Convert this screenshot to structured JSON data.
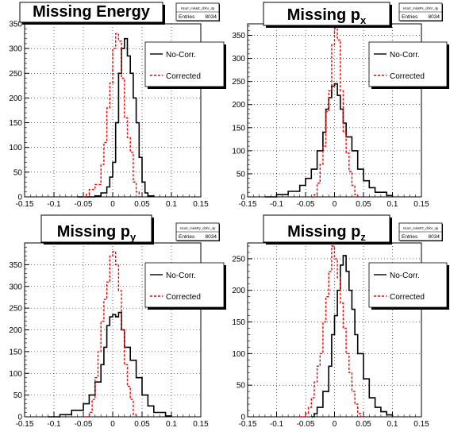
{
  "figure": {
    "panels": [
      {
        "id": "E",
        "title_main": "Missing Energy",
        "title_sub": "",
        "stats_name": "Hcorr_missE_chkV_4p",
        "stats_entries_label": "Entries",
        "stats_entries_value": "8034",
        "legend": {
          "placement": "right",
          "entries": [
            "No-Corr.",
            "Corrected"
          ]
        }
      },
      {
        "id": "px",
        "title_main": "Missing p",
        "title_sub": "x",
        "stats_name": "Hcorr_missPx_chkV_4p",
        "stats_entries_label": "Entries",
        "stats_entries_value": "8034",
        "legend": {
          "placement": "right",
          "entries": [
            "No-Corr.",
            "Corrected"
          ]
        }
      },
      {
        "id": "py",
        "title_main": "Missing p",
        "title_sub": "y",
        "stats_name": "Hcorr_missPy_chkV_4p",
        "stats_entries_label": "Entries",
        "stats_entries_value": "8034",
        "legend": {
          "placement": "right",
          "entries": [
            "No-Corr.",
            "Corrected"
          ]
        }
      },
      {
        "id": "pz",
        "title_main": "Missing p",
        "title_sub": "z",
        "stats_name": "Hcorr_missPz_chkV_4p",
        "stats_entries_label": "Entries",
        "stats_entries_value": "8034",
        "legend": {
          "placement": "right",
          "entries": [
            "No-Corr.",
            "Corrected"
          ]
        }
      }
    ],
    "colors": {
      "nocorr": "#000000",
      "corrected": "#ff0000",
      "grid": "#000000",
      "frame": "#000000",
      "legend_shadow": "#000000"
    }
  },
  "chart_data": [
    {
      "type": "histogram",
      "title": "Missing Energy",
      "xlim": [
        -0.15,
        0.15
      ],
      "ylim": [
        0,
        350
      ],
      "xticks": [
        -0.15,
        -0.1,
        -0.05,
        0,
        0.05,
        0.1,
        0.15
      ],
      "xticklabels": [
        "-0.15",
        "-0.1",
        "-0.05",
        "0",
        "0.05",
        "0.1",
        "0.15"
      ],
      "yticks": [
        0,
        50,
        100,
        150,
        200,
        250,
        300,
        350
      ],
      "grid": true,
      "series": [
        {
          "name": "No-Corr.",
          "style": "solid",
          "color": "#000000",
          "points": [
            [
              -0.06,
              0
            ],
            [
              -0.03,
              2
            ],
            [
              -0.02,
              8
            ],
            [
              -0.01,
              20
            ],
            [
              -0.005,
              40
            ],
            [
              0,
              70
            ],
            [
              0.005,
              150
            ],
            [
              0.01,
              250
            ],
            [
              0.015,
              300
            ],
            [
              0.02,
              320
            ],
            [
              0.025,
              285
            ],
            [
              0.03,
              250
            ],
            [
              0.035,
              200
            ],
            [
              0.04,
              150
            ],
            [
              0.045,
              80
            ],
            [
              0.05,
              30
            ],
            [
              0.055,
              8
            ],
            [
              0.06,
              2
            ],
            [
              0.07,
              0
            ]
          ]
        },
        {
          "name": "Corrected",
          "style": "dashed",
          "color": "#ff0000",
          "points": [
            [
              -0.05,
              0
            ],
            [
              -0.045,
              5
            ],
            [
              -0.04,
              15
            ],
            [
              -0.03,
              25
            ],
            [
              -0.02,
              65
            ],
            [
              -0.015,
              110
            ],
            [
              -0.01,
              180
            ],
            [
              -0.005,
              230
            ],
            [
              0,
              300
            ],
            [
              0.005,
              330
            ],
            [
              0.01,
              315
            ],
            [
              0.015,
              240
            ],
            [
              0.02,
              160
            ],
            [
              0.025,
              120
            ],
            [
              0.03,
              90
            ],
            [
              0.035,
              30
            ],
            [
              0.04,
              10
            ],
            [
              0.045,
              0
            ]
          ]
        }
      ]
    },
    {
      "type": "histogram",
      "title": "Missing p_x",
      "xlim": [
        -0.15,
        0.15
      ],
      "ylim": [
        0,
        375
      ],
      "xticks": [
        -0.15,
        -0.1,
        -0.05,
        0,
        0.05,
        0.1,
        0.15
      ],
      "xticklabels": [
        "-0.15",
        "-0.1",
        "-0.05",
        "0",
        "0.05",
        "0.1",
        "0.15"
      ],
      "yticks": [
        0,
        50,
        100,
        150,
        200,
        250,
        300,
        350
      ],
      "grid": true,
      "series": [
        {
          "name": "No-Corr.",
          "style": "solid",
          "color": "#000000",
          "points": [
            [
              -0.12,
              0
            ],
            [
              -0.1,
              5
            ],
            [
              -0.08,
              12
            ],
            [
              -0.06,
              25
            ],
            [
              -0.05,
              40
            ],
            [
              -0.04,
              60
            ],
            [
              -0.03,
              100
            ],
            [
              -0.02,
              140
            ],
            [
              -0.015,
              190
            ],
            [
              -0.01,
              215
            ],
            [
              -0.005,
              240
            ],
            [
              0,
              245
            ],
            [
              0.005,
              220
            ],
            [
              0.01,
              190
            ],
            [
              0.015,
              160
            ],
            [
              0.02,
              130
            ],
            [
              0.03,
              100
            ],
            [
              0.04,
              60
            ],
            [
              0.05,
              35
            ],
            [
              0.06,
              20
            ],
            [
              0.07,
              10
            ],
            [
              0.09,
              3
            ],
            [
              0.1,
              0
            ]
          ]
        },
        {
          "name": "Corrected",
          "style": "dashed",
          "color": "#ff0000",
          "points": [
            [
              -0.04,
              0
            ],
            [
              -0.035,
              5
            ],
            [
              -0.03,
              30
            ],
            [
              -0.025,
              70
            ],
            [
              -0.02,
              110
            ],
            [
              -0.015,
              185
            ],
            [
              -0.01,
              230
            ],
            [
              -0.005,
              330
            ],
            [
              0,
              365
            ],
            [
              0.005,
              340
            ],
            [
              0.01,
              230
            ],
            [
              0.015,
              140
            ],
            [
              0.02,
              95
            ],
            [
              0.025,
              55
            ],
            [
              0.03,
              25
            ],
            [
              0.035,
              5
            ],
            [
              0.04,
              0
            ]
          ]
        }
      ]
    },
    {
      "type": "histogram",
      "title": "Missing p_y",
      "xlim": [
        -0.15,
        0.15
      ],
      "ylim": [
        0,
        400
      ],
      "xticks": [
        -0.15,
        -0.1,
        -0.05,
        0,
        0.05,
        0.1,
        0.15
      ],
      "xticklabels": [
        "-0.15",
        "-0.1",
        "-0.05",
        "0",
        "0.05",
        "0.1",
        "0.15"
      ],
      "yticks": [
        0,
        50,
        100,
        150,
        200,
        250,
        300,
        350
      ],
      "grid": true,
      "series": [
        {
          "name": "No-Corr.",
          "style": "solid",
          "color": "#000000",
          "points": [
            [
              -0.11,
              0
            ],
            [
              -0.09,
              5
            ],
            [
              -0.07,
              15
            ],
            [
              -0.05,
              30
            ],
            [
              -0.04,
              50
            ],
            [
              -0.03,
              80
            ],
            [
              -0.02,
              120
            ],
            [
              -0.015,
              160
            ],
            [
              -0.01,
              210
            ],
            [
              -0.005,
              230
            ],
            [
              0,
              235
            ],
            [
              0.005,
              230
            ],
            [
              0.01,
              240
            ],
            [
              0.015,
              200
            ],
            [
              0.02,
              160
            ],
            [
              0.03,
              130
            ],
            [
              0.04,
              90
            ],
            [
              0.05,
              50
            ],
            [
              0.06,
              25
            ],
            [
              0.07,
              10
            ],
            [
              0.09,
              2
            ],
            [
              0.1,
              0
            ]
          ]
        },
        {
          "name": "Corrected",
          "style": "dashed",
          "color": "#ff0000",
          "points": [
            [
              -0.045,
              0
            ],
            [
              -0.04,
              10
            ],
            [
              -0.035,
              40
            ],
            [
              -0.03,
              90
            ],
            [
              -0.025,
              150
            ],
            [
              -0.02,
              220
            ],
            [
              -0.015,
              270
            ],
            [
              -0.01,
              310
            ],
            [
              -0.005,
              370
            ],
            [
              0,
              380
            ],
            [
              0.005,
              350
            ],
            [
              0.01,
              290
            ],
            [
              0.015,
              200
            ],
            [
              0.02,
              120
            ],
            [
              0.025,
              70
            ],
            [
              0.03,
              40
            ],
            [
              0.035,
              5
            ],
            [
              0.04,
              0
            ]
          ]
        }
      ]
    },
    {
      "type": "histogram",
      "title": "Missing p_z",
      "xlim": [
        -0.15,
        0.15
      ],
      "ylim": [
        0,
        275
      ],
      "xticks": [
        -0.15,
        -0.1,
        -0.05,
        0,
        0.05,
        0.1,
        0.15
      ],
      "xticklabels": [
        "-0.15",
        "-0.1",
        "-0.05",
        "0",
        "0.05",
        "0.1",
        "0.15"
      ],
      "yticks": [
        0,
        50,
        100,
        150,
        200,
        250
      ],
      "grid": true,
      "series": [
        {
          "name": "No-Corr.",
          "style": "solid",
          "color": "#000000",
          "points": [
            [
              -0.04,
              0
            ],
            [
              -0.035,
              5
            ],
            [
              -0.03,
              15
            ],
            [
              -0.02,
              40
            ],
            [
              -0.01,
              80
            ],
            [
              -0.005,
              130
            ],
            [
              0,
              160
            ],
            [
              0.005,
              200
            ],
            [
              0.01,
              240
            ],
            [
              0.015,
              255
            ],
            [
              0.02,
              230
            ],
            [
              0.025,
              200
            ],
            [
              0.03,
              170
            ],
            [
              0.035,
              130
            ],
            [
              0.04,
              100
            ],
            [
              0.05,
              60
            ],
            [
              0.06,
              30
            ],
            [
              0.07,
              15
            ],
            [
              0.08,
              8
            ],
            [
              0.09,
              3
            ],
            [
              0.1,
              0
            ]
          ]
        },
        {
          "name": "Corrected",
          "style": "dashed",
          "color": "#ff0000",
          "points": [
            [
              -0.06,
              0
            ],
            [
              -0.05,
              5
            ],
            [
              -0.045,
              15
            ],
            [
              -0.04,
              30
            ],
            [
              -0.035,
              55
            ],
            [
              -0.03,
              80
            ],
            [
              -0.025,
              100
            ],
            [
              -0.02,
              150
            ],
            [
              -0.015,
              190
            ],
            [
              -0.01,
              230
            ],
            [
              -0.005,
              270
            ],
            [
              0,
              250
            ],
            [
              0.005,
              220
            ],
            [
              0.01,
              180
            ],
            [
              0.015,
              140
            ],
            [
              0.02,
              100
            ],
            [
              0.025,
              70
            ],
            [
              0.03,
              40
            ],
            [
              0.035,
              20
            ],
            [
              0.04,
              5
            ],
            [
              0.045,
              0
            ]
          ]
        }
      ]
    }
  ]
}
